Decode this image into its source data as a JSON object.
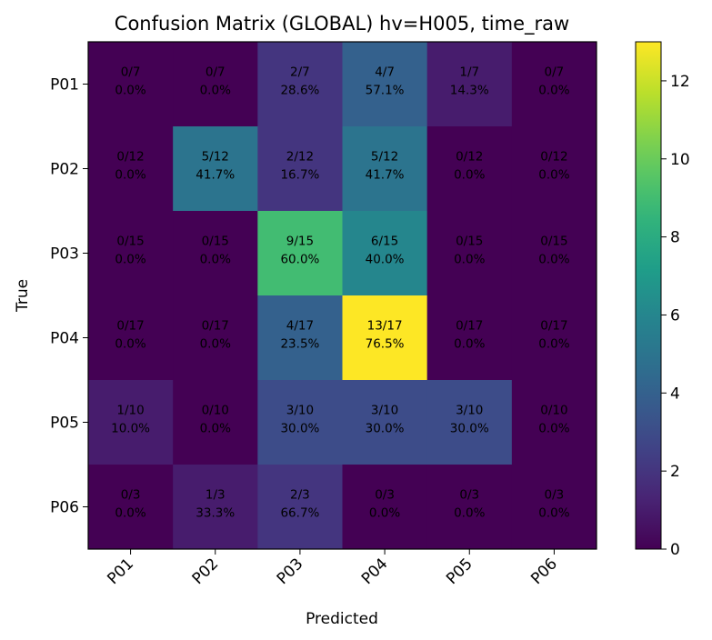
{
  "chart_data": {
    "type": "heatmap",
    "title": "Confusion Matrix (GLOBAL) hv=H005, time_raw",
    "xlabel": "Predicted",
    "ylabel": "True",
    "x_categories": [
      "P01",
      "P02",
      "P03",
      "P04",
      "P05",
      "P06"
    ],
    "y_categories": [
      "P01",
      "P02",
      "P03",
      "P04",
      "P05",
      "P06"
    ],
    "counts": [
      [
        0,
        0,
        2,
        4,
        1,
        0
      ],
      [
        0,
        5,
        2,
        5,
        0,
        0
      ],
      [
        0,
        0,
        9,
        6,
        0,
        0
      ],
      [
        0,
        0,
        4,
        13,
        0,
        0
      ],
      [
        1,
        0,
        3,
        3,
        3,
        0
      ],
      [
        0,
        1,
        2,
        0,
        0,
        0
      ]
    ],
    "row_totals": [
      7,
      12,
      15,
      17,
      10,
      3
    ],
    "colorbar": {
      "min": 0,
      "max": 13,
      "ticks": [
        0,
        2,
        4,
        6,
        8,
        10,
        12
      ],
      "colormap": "viridis"
    },
    "cell_text_color": "#000000"
  }
}
